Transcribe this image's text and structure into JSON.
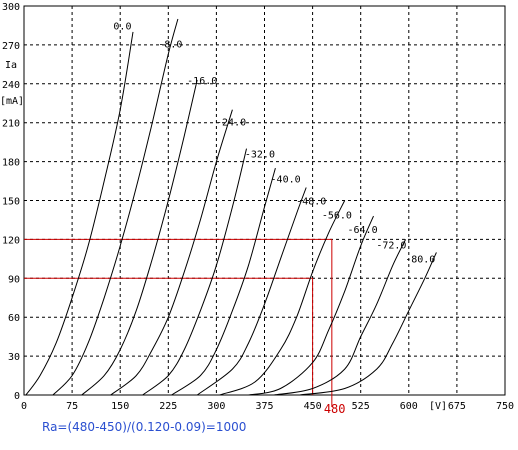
{
  "chart_data": {
    "type": "line",
    "xlabel": "[V]",
    "ylabel": "Ia",
    "ylabel_unit": "[mA]",
    "xlim": [
      0,
      750
    ],
    "ylim": [
      0,
      300
    ],
    "x_ticks": [
      0,
      75,
      150,
      225,
      300,
      375,
      450,
      525,
      600,
      675,
      750
    ],
    "y_ticks": [
      0,
      30,
      60,
      90,
      120,
      150,
      180,
      210,
      240,
      270,
      300
    ],
    "x_tick_labels": [
      "0",
      "75",
      "150",
      "225",
      "300",
      "375",
      "450",
      "525",
      "600",
      "675",
      "750"
    ],
    "y_tick_labels": [
      "0",
      "30",
      "60",
      "90",
      "120",
      "150",
      "180",
      "210",
      "240",
      "270",
      "300"
    ],
    "grid": true,
    "series": [
      {
        "name": "0.0",
        "points": [
          [
            3,
            0
          ],
          [
            25,
            15
          ],
          [
            50,
            40
          ],
          [
            75,
            75
          ],
          [
            100,
            115
          ],
          [
            125,
            165
          ],
          [
            150,
            220
          ],
          [
            170,
            280
          ]
        ]
      },
      {
        "name": "-8.0",
        "points": [
          [
            45,
            0
          ],
          [
            75,
            15
          ],
          [
            100,
            40
          ],
          [
            125,
            75
          ],
          [
            150,
            115
          ],
          [
            175,
            160
          ],
          [
            200,
            210
          ],
          [
            225,
            263
          ],
          [
            240,
            290
          ]
        ]
      },
      {
        "name": "-16.0",
        "points": [
          [
            90,
            0
          ],
          [
            125,
            15
          ],
          [
            150,
            35
          ],
          [
            175,
            65
          ],
          [
            200,
            105
          ],
          [
            225,
            150
          ],
          [
            250,
            200
          ],
          [
            270,
            243
          ]
        ]
      },
      {
        "name": "-24.0",
        "points": [
          [
            135,
            0
          ],
          [
            175,
            15
          ],
          [
            200,
            35
          ],
          [
            225,
            60
          ],
          [
            250,
            95
          ],
          [
            275,
            135
          ],
          [
            300,
            180
          ],
          [
            325,
            220
          ]
        ]
      },
      {
        "name": "-32.0",
        "points": [
          [
            185,
            0
          ],
          [
            225,
            15
          ],
          [
            250,
            35
          ],
          [
            275,
            65
          ],
          [
            300,
            100
          ],
          [
            325,
            145
          ],
          [
            347,
            190
          ]
        ]
      },
      {
        "name": "-40.0",
        "points": [
          [
            230,
            0
          ],
          [
            275,
            15
          ],
          [
            300,
            35
          ],
          [
            325,
            65
          ],
          [
            350,
            100
          ],
          [
            375,
            145
          ],
          [
            392,
            175
          ]
        ]
      },
      {
        "name": "-48.0",
        "points": [
          [
            270,
            0
          ],
          [
            325,
            20
          ],
          [
            350,
            40
          ],
          [
            375,
            70
          ],
          [
            400,
            105
          ],
          [
            425,
            140
          ],
          [
            440,
            160
          ]
        ]
      },
      {
        "name": "-56.0",
        "points": [
          [
            305,
            0
          ],
          [
            360,
            10
          ],
          [
            400,
            35
          ],
          [
            425,
            60
          ],
          [
            450,
            95
          ],
          [
            475,
            125
          ],
          [
            500,
            150
          ]
        ]
      },
      {
        "name": "-64.0",
        "points": [
          [
            350,
            0
          ],
          [
            400,
            5
          ],
          [
            450,
            25
          ],
          [
            475,
            50
          ],
          [
            500,
            80
          ],
          [
            525,
            115
          ],
          [
            545,
            138
          ]
        ]
      },
      {
        "name": "-72.0",
        "points": [
          [
            390,
            0
          ],
          [
            450,
            5
          ],
          [
            500,
            20
          ],
          [
            525,
            45
          ],
          [
            550,
            70
          ],
          [
            575,
            100
          ],
          [
            595,
            120
          ]
        ]
      },
      {
        "name": "-80.0",
        "points": [
          [
            430,
            0
          ],
          [
            500,
            5
          ],
          [
            550,
            20
          ],
          [
            575,
            40
          ],
          [
            600,
            65
          ],
          [
            625,
            90
          ],
          [
            643,
            110
          ]
        ]
      }
    ],
    "curve_label_positions": [
      {
        "name": "0.0",
        "x": 155,
        "y": 282
      },
      {
        "name": "-8.0",
        "x": 225,
        "y": 268
      },
      {
        "name": "-16.0",
        "x": 270,
        "y": 240
      },
      {
        "name": "-24.0",
        "x": 315,
        "y": 208
      },
      {
        "name": "-32.0",
        "x": 360,
        "y": 183
      },
      {
        "name": "-40.0",
        "x": 400,
        "y": 164
      },
      {
        "name": "-48.0",
        "x": 440,
        "y": 147
      },
      {
        "name": "-56.0",
        "x": 480,
        "y": 136
      },
      {
        "name": "-64.0",
        "x": 520,
        "y": 125
      },
      {
        "name": "-72.0",
        "x": 565,
        "y": 113
      },
      {
        "name": "-80.0",
        "x": 610,
        "y": 102
      }
    ],
    "annotations": {
      "hline_1": {
        "y": 120,
        "x_to": 480
      },
      "hline_2": {
        "y": 90,
        "x_to": 450
      },
      "vline_1": {
        "x": 480,
        "y_to": 120
      },
      "vline_2": {
        "x": 450,
        "y_to": 90
      },
      "marker_label": "480",
      "marker_x": 480,
      "color": "#cc0000"
    }
  },
  "caption": "Ra=(480-450)/(0.120-0.09)=1000"
}
